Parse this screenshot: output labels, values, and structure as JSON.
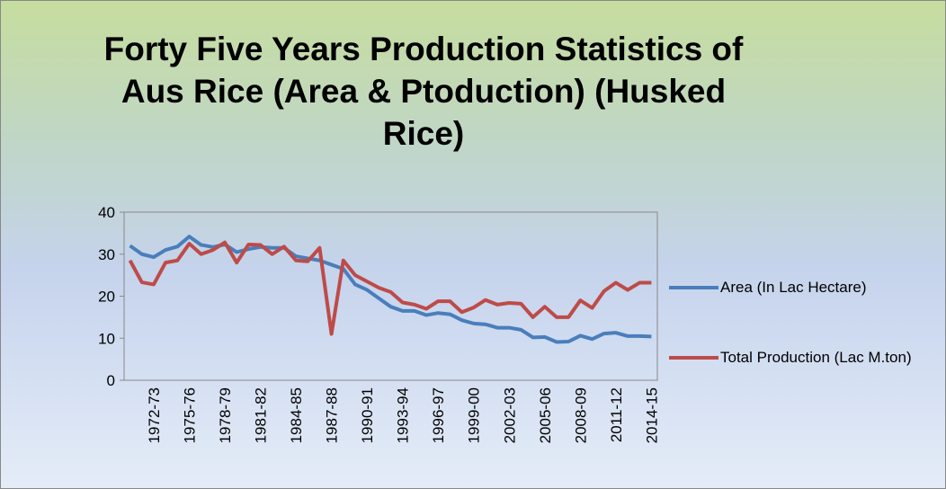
{
  "chart_data": {
    "type": "line",
    "title": "Forty Five Years Production Statistics of Aus Rice (Area & Ptoduction) (Husked Rice)",
    "categories": [
      null,
      null,
      "1972-73",
      null,
      null,
      "1975-76",
      null,
      null,
      "1978-79",
      null,
      null,
      "1981-82",
      null,
      null,
      "1984-85",
      null,
      null,
      "1987-88",
      null,
      null,
      "1990-91",
      null,
      null,
      "1993-94",
      null,
      null,
      "1996-97",
      null,
      null,
      "1999-00",
      null,
      null,
      "2002-03",
      null,
      null,
      "2005-06",
      null,
      null,
      "2008-09",
      null,
      null,
      "2011-12",
      null,
      null,
      "2014-15"
    ],
    "series": [
      {
        "name": "Area  (In Lac Hectare)",
        "color": "#4a7ebb",
        "values": [
          32,
          30,
          29.3,
          31,
          31.8,
          34.2,
          32.2,
          31.7,
          32.3,
          30.5,
          31.2,
          31.7,
          31.5,
          31.5,
          29.5,
          29,
          28.5,
          27.5,
          26.5,
          22.8,
          21.5,
          19.5,
          17.5,
          16.5,
          16.5,
          15.5,
          16,
          15.7,
          14.3,
          13.5,
          13.3,
          12.5,
          12.5,
          12,
          10.2,
          10.3,
          9.1,
          9.2,
          10.6,
          9.8,
          11.1,
          11.3,
          10.5,
          10.5,
          10.4
        ]
      },
      {
        "name": "Total Production (Lac M.ton)",
        "color": "#be4b48",
        "values": [
          28.5,
          23.3,
          22.8,
          28,
          28.5,
          32.5,
          30,
          31,
          32.8,
          28,
          32.3,
          32.2,
          30,
          31.8,
          28.5,
          28.3,
          31.5,
          11,
          28.5,
          25,
          23.5,
          22,
          21,
          18.5,
          18,
          17,
          18.8,
          18.8,
          16.2,
          17.3,
          19.1,
          18,
          18.4,
          18.2,
          15,
          17.5,
          15,
          15,
          19,
          17.2,
          21.2,
          23.2,
          21.5,
          23.2,
          23.2
        ]
      }
    ],
    "ylim": [
      0,
      40
    ],
    "yticks": [
      0,
      10,
      20,
      30,
      40
    ],
    "grid": false,
    "legend": "right"
  }
}
